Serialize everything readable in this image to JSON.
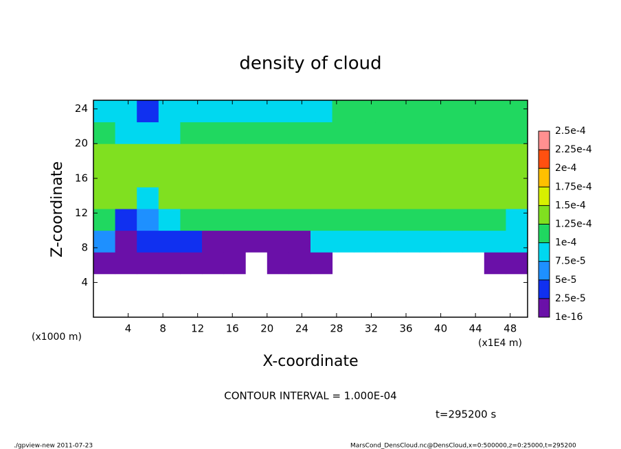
{
  "chart_data": {
    "type": "heatmap",
    "title": "density of cloud",
    "x_label": "X-coordinate",
    "y_label": "Z-coordinate",
    "x_unit": "(x1E4 m)",
    "y_unit": "(x1000 m)",
    "xlim": [
      0,
      50
    ],
    "ylim": [
      0,
      25
    ],
    "xticks": [
      4,
      8,
      12,
      16,
      20,
      24,
      28,
      32,
      36,
      40,
      44,
      48
    ],
    "yticks": [
      4,
      8,
      12,
      16,
      20,
      24
    ],
    "x": [
      1.25,
      3.75,
      6.25,
      8.75,
      11.25,
      13.75,
      16.25,
      18.75,
      21.25,
      23.75,
      26.25,
      28.75,
      31.25,
      33.75,
      36.25,
      38.75,
      41.25,
      43.75,
      46.25,
      48.75
    ],
    "y": [
      1.25,
      3.75,
      6.25,
      8.75,
      11.25,
      13.75,
      16.25,
      18.75,
      21.25,
      23.75
    ],
    "values": [
      [
        null,
        null,
        null,
        null,
        null,
        null,
        null,
        null,
        null,
        null,
        null,
        null,
        null,
        null,
        null,
        null,
        null,
        null,
        null,
        null
      ],
      [
        null,
        null,
        null,
        null,
        null,
        null,
        null,
        null,
        null,
        null,
        null,
        null,
        null,
        null,
        null,
        null,
        null,
        null,
        null,
        null
      ],
      [
        1e-05,
        1e-05,
        1e-05,
        1e-05,
        1e-05,
        1e-05,
        1e-05,
        null,
        1e-05,
        1e-05,
        1e-05,
        null,
        null,
        null,
        null,
        null,
        null,
        null,
        1e-05,
        1e-05
      ],
      [
        7e-05,
        2e-05,
        3e-05,
        4e-05,
        3e-05,
        2e-05,
        2e-05,
        2e-05,
        2e-05,
        2e-05,
        8e-05,
        8e-05,
        8e-05,
        8e-05,
        8e-05,
        8e-05,
        8e-05,
        8e-05,
        8e-05,
        8e-05
      ],
      [
        0.00011,
        4e-05,
        6e-05,
        9e-05,
        0.00011,
        0.00011,
        0.00011,
        0.00011,
        0.00011,
        0.00011,
        0.00011,
        0.00011,
        0.00011,
        0.00011,
        0.00011,
        0.00011,
        0.00011,
        0.00011,
        0.00011,
        9e-05
      ],
      [
        0.00013,
        0.00014,
        9e-05,
        0.00013,
        0.00013,
        0.00013,
        0.00013,
        0.00013,
        0.00013,
        0.00013,
        0.00013,
        0.00013,
        0.00013,
        0.00013,
        0.00013,
        0.00013,
        0.00013,
        0.00013,
        0.00013,
        0.00013
      ],
      [
        0.00013,
        0.00014,
        0.00014,
        0.00014,
        0.00014,
        0.00014,
        0.00014,
        0.00014,
        0.00014,
        0.00014,
        0.00014,
        0.00014,
        0.00014,
        0.00014,
        0.00014,
        0.00014,
        0.00014,
        0.00014,
        0.00014,
        0.00014
      ],
      [
        0.00014,
        0.00014,
        0.00014,
        0.00014,
        0.00014,
        0.00014,
        0.00014,
        0.00014,
        0.00014,
        0.00014,
        0.00014,
        0.00014,
        0.00014,
        0.00014,
        0.00014,
        0.00014,
        0.00014,
        0.00014,
        0.00014,
        0.00014
      ],
      [
        0.00012,
        9e-05,
        9e-05,
        9e-05,
        0.00012,
        0.00012,
        0.00012,
        0.00012,
        0.00012,
        0.00012,
        0.00012,
        0.00012,
        0.00012,
        0.00012,
        0.00011,
        0.00011,
        0.00011,
        0.00012,
        0.00012,
        0.00012
      ],
      [
        8e-05,
        8e-05,
        4e-05,
        8e-05,
        8e-05,
        8e-05,
        8e-05,
        8e-05,
        8e-05,
        8e-05,
        8e-05,
        0.0001,
        0.0001,
        0.0001,
        0.0001,
        0.0001,
        0.0001,
        0.0001,
        0.0001,
        0.0001
      ]
    ],
    "levels": [
      {
        "value": 1e-16,
        "label": "1e-16"
      },
      {
        "value": 2.5e-05,
        "label": "2.5e-5"
      },
      {
        "value": 5e-05,
        "label": "5e-5"
      },
      {
        "value": 7.5e-05,
        "label": "7.5e-5"
      },
      {
        "value": 0.0001,
        "label": "1e-4"
      },
      {
        "value": 0.000125,
        "label": "1.25e-4"
      },
      {
        "value": 0.00015,
        "label": "1.5e-4"
      },
      {
        "value": 0.000175,
        "label": "1.75e-4"
      },
      {
        "value": 0.0002,
        "label": "2e-4"
      },
      {
        "value": 0.000225,
        "label": "2.25e-4"
      },
      {
        "value": 0.00025,
        "label": "2.5e-4"
      }
    ],
    "colors": [
      "#6a10a8",
      "#1030f0",
      "#1e90ff",
      "#00d8f0",
      "#20d860",
      "#80e020",
      "#d8f000",
      "#ffc000",
      "#ff5010",
      "#ff9090"
    ],
    "contour_note": "CONTOUR INTERVAL = 1.000E-04",
    "time_note": "t=295200 s",
    "footer_left": "./gpview-new  2011-07-23",
    "footer_right": "MarsCond_DensCloud.nc@DensCloud,x=0:500000,z=0:25000,t=295200"
  }
}
